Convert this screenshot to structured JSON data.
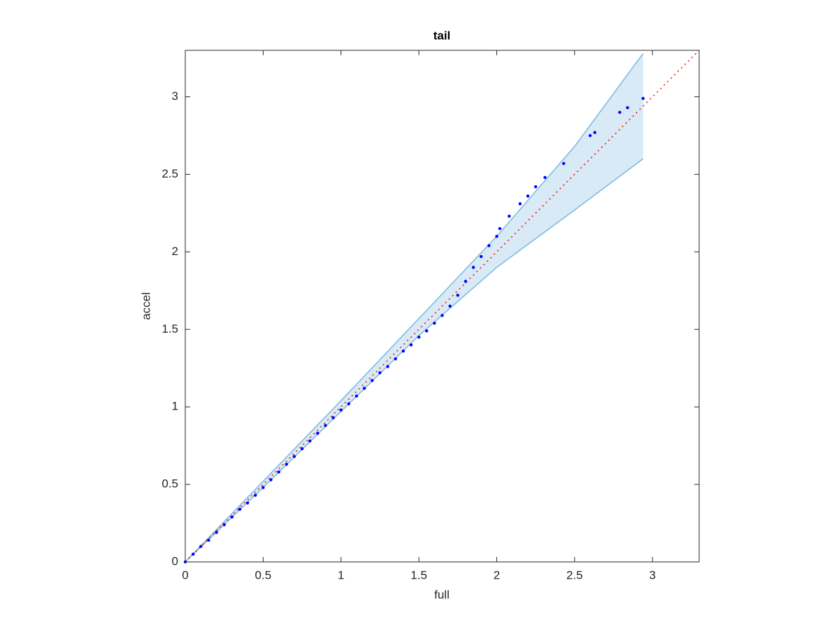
{
  "chart_data": {
    "type": "scatter",
    "title": "tail",
    "x_label": "full",
    "y_label": "accel",
    "x": [
      0,
      0.05,
      0.1,
      0.15,
      0.2,
      0.25,
      0.3,
      0.35,
      0.4,
      0.45,
      0.5,
      0.55,
      0.6,
      0.65,
      0.7,
      0.75,
      0.8,
      0.85,
      0.9,
      0.95,
      1.0,
      1.05,
      1.1,
      1.15,
      1.2,
      1.25,
      1.3,
      1.35,
      1.4,
      1.45,
      1.5,
      1.55,
      1.6,
      1.65,
      1.7,
      1.75,
      1.8,
      1.85,
      1.9,
      1.95,
      2.0,
      2.02,
      2.08,
      2.15,
      2.2,
      2.25,
      2.31,
      2.43,
      2.6,
      2.63,
      2.79,
      2.84,
      2.94
    ],
    "values": [
      0,
      0.05,
      0.1,
      0.14,
      0.19,
      0.24,
      0.29,
      0.34,
      0.38,
      0.43,
      0.48,
      0.53,
      0.58,
      0.63,
      0.68,
      0.73,
      0.78,
      0.83,
      0.88,
      0.93,
      0.98,
      1.02,
      1.07,
      1.12,
      1.17,
      1.22,
      1.26,
      1.31,
      1.36,
      1.4,
      1.45,
      1.49,
      1.54,
      1.59,
      1.65,
      1.72,
      1.81,
      1.9,
      1.97,
      2.04,
      2.1,
      2.15,
      2.23,
      2.31,
      2.36,
      2.42,
      2.48,
      2.57,
      2.75,
      2.77,
      2.9,
      2.93,
      2.99
    ],
    "color": "#0000ff",
    "band": {
      "x": [
        0,
        0.5,
        1,
        1.5,
        2,
        2.5,
        2.94
      ],
      "upper": [
        0,
        0.52,
        1.04,
        1.57,
        2.1,
        2.68,
        3.28
      ],
      "lower": [
        0,
        0.48,
        0.97,
        1.46,
        1.9,
        2.27,
        2.6
      ],
      "color": "#7ab8e0"
    },
    "reference_line": {
      "x": [
        0,
        3.3
      ],
      "y": [
        0,
        3.3
      ],
      "color": "#ff0000"
    },
    "xlim": [
      0,
      3.3
    ],
    "ylim": [
      0,
      3.3
    ],
    "xticks": [
      0,
      0.5,
      1,
      1.5,
      2,
      2.5,
      3
    ],
    "yticks": [
      0,
      0.5,
      1,
      1.5,
      2,
      2.5,
      3
    ]
  }
}
